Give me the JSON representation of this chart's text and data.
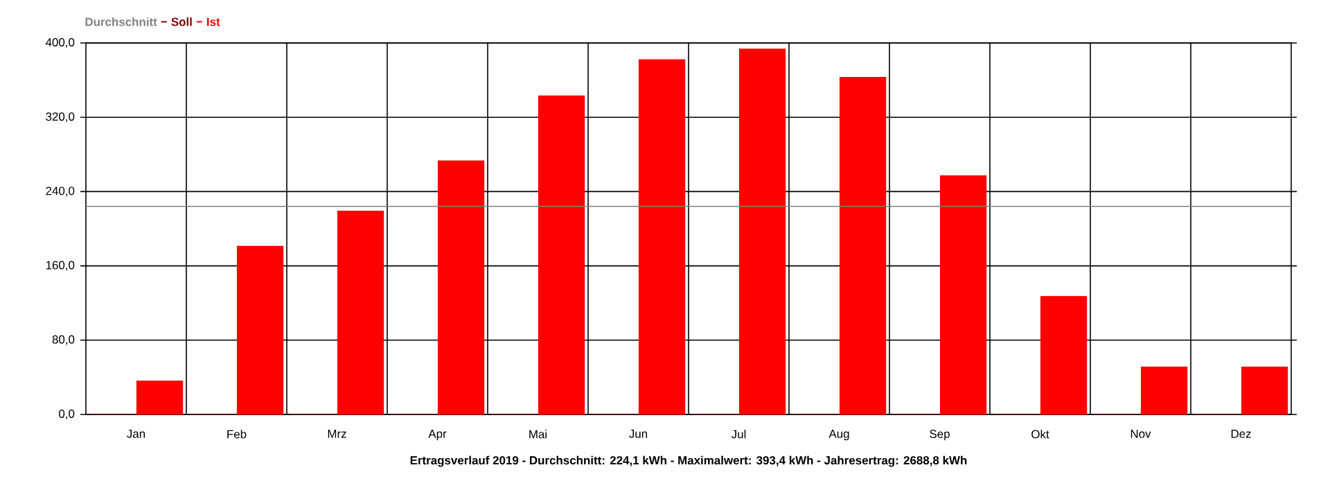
{
  "chart_data": {
    "type": "bar",
    "title": "Ertragsverlauf 2019 - Durchschnitt: 224,1 kWh - Maximalwert: 393,4 kWh - Jahresertrag: 2688,8 kWh",
    "categories": [
      "Jan",
      "Feb",
      "Mrz",
      "Apr",
      "Mai",
      "Jun",
      "Jul",
      "Aug",
      "Sep",
      "Okt",
      "Nov",
      "Dez"
    ],
    "series": [
      {
        "name": "Soll",
        "color": "#800000",
        "values": [
          0,
          0,
          0,
          0,
          0,
          0,
          0,
          0,
          0,
          0,
          0,
          0
        ]
      },
      {
        "name": "Ist",
        "color": "#ff0000",
        "values": [
          36,
          181,
          219,
          273,
          343,
          382,
          393.4,
          363,
          257,
          127,
          51,
          51
        ]
      }
    ],
    "ylim": [
      0,
      400
    ],
    "yticks": [
      {
        "value": 0,
        "label": "0,0"
      },
      {
        "value": 80,
        "label": "80,0"
      },
      {
        "value": 160,
        "label": "160,0"
      },
      {
        "value": 240,
        "label": "240,0"
      },
      {
        "value": 320,
        "label": "320,0"
      },
      {
        "value": 400,
        "label": "400,0"
      }
    ],
    "ref_lines": [
      {
        "axis": "y",
        "value": 224.1,
        "label": "Durchschnitt",
        "color": "#808080"
      }
    ],
    "grid": true,
    "legend": "top left"
  }
}
